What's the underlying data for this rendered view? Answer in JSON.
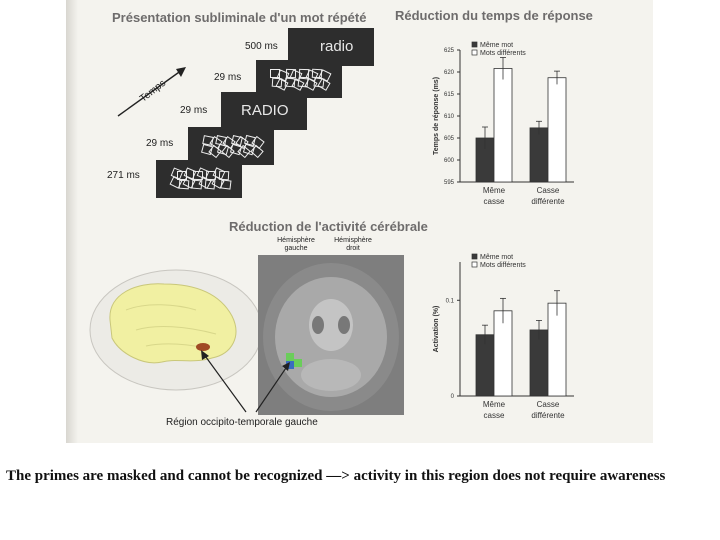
{
  "headers": {
    "presentation": "Présentation subliminale d'un mot répété",
    "reduction_time": "Réduction du temps de réponse",
    "reduction_activity": "Réduction de l'activité cérébrale"
  },
  "sequence": {
    "time_label": "Temps",
    "durations": [
      "500 ms",
      "29 ms",
      "29 ms",
      "29 ms",
      "271 ms"
    ],
    "word_lower": "radio",
    "word_upper": "RADIO"
  },
  "brain": {
    "left_hemisphere": "Hémisphère gauche",
    "right_hemisphere": "Hémisphère droit",
    "region_label": "Région occipito-temporale gauche",
    "highlight_color": "#6acd5a"
  },
  "caption": "The primes are masked and cannot be recognized —> activity in this region does not require awareness",
  "chart_data": [
    {
      "type": "bar",
      "ylabel": "Temps de réponse (ms)",
      "ylim": [
        595,
        625
      ],
      "yticks": [
        "595",
        "600",
        "605",
        "610",
        "615",
        "620",
        "625"
      ],
      "categories": [
        [
          "Même",
          "casse"
        ],
        [
          "Casse",
          "différente"
        ]
      ],
      "legend_position": "top-left",
      "series": [
        {
          "name": "Même mot",
          "color": "#3a3a3a",
          "values": [
            605.0,
            607.3
          ],
          "errors": [
            2.5,
            1.5
          ]
        },
        {
          "name": "Mots différents",
          "color": "#ffffff",
          "values": [
            620.8,
            618.7
          ],
          "errors": [
            2.5,
            1.5
          ]
        }
      ]
    },
    {
      "type": "bar",
      "ylabel": "Activation (%)",
      "ylim": [
        0,
        0.14
      ],
      "yticks": [
        "0",
        "0.1"
      ],
      "categories": [
        [
          "Même",
          "casse"
        ],
        [
          "Casse",
          "différente"
        ]
      ],
      "legend_position": "top-left",
      "series": [
        {
          "name": "Même mot",
          "color": "#3a3a3a",
          "values": [
            0.064,
            0.069
          ],
          "errors": [
            0.01,
            0.01
          ]
        },
        {
          "name": "Mots différents",
          "color": "#ffffff",
          "values": [
            0.089,
            0.097
          ],
          "errors": [
            0.013,
            0.013
          ]
        }
      ]
    }
  ]
}
